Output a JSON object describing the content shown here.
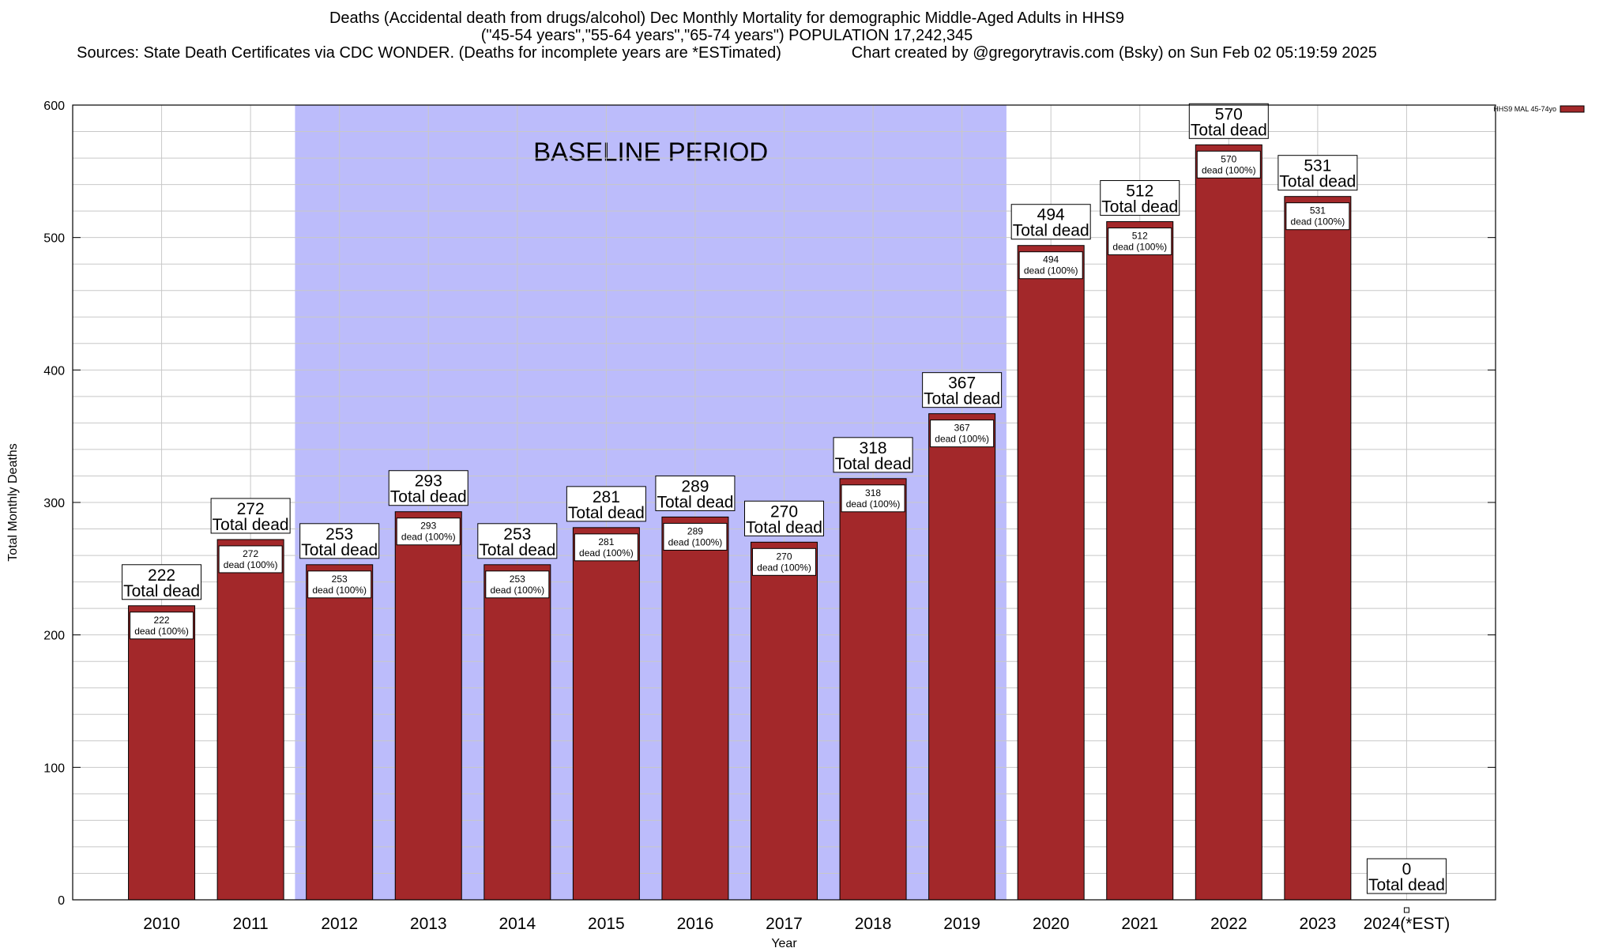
{
  "header": {
    "title_line1": "Deaths (Accidental death from drugs/alcohol) Dec Monthly Mortality for demographic Middle-Aged Adults in HHS9",
    "title_line2": "(\"45-54 years\",\"55-64 years\",\"65-74 years\") POPULATION 17,242,345",
    "title_line3": "Sources: State Death Certificates via CDC WONDER. (Deaths for incomplete years are *ESTimated)                Chart created by @gregorytravis.com (Bsky) on Sun Feb 02 05:19:59 2025"
  },
  "colors": {
    "bar": "#a3282a",
    "baseline_band": "#bcbcfb",
    "grid": "#c8c8c8"
  },
  "chart_data": {
    "type": "bar",
    "categories": [
      "2010",
      "2011",
      "2012",
      "2013",
      "2014",
      "2015",
      "2016",
      "2017",
      "2018",
      "2019",
      "2020",
      "2021",
      "2022",
      "2023",
      "2024(*EST)"
    ],
    "series": [
      {
        "name": "HHS9 MAL 45-74yo",
        "values": [
          222,
          272,
          253,
          293,
          253,
          281,
          289,
          270,
          318,
          367,
          494,
          512,
          570,
          531,
          0
        ]
      }
    ],
    "ylabel": "Total Monthly Deaths",
    "xlabel": "Year",
    "ylim": [
      0,
      600
    ],
    "yticks": [
      0,
      100,
      200,
      300,
      400,
      500,
      600
    ],
    "grid": true,
    "legend_position": "top-right",
    "total_label_text": "Total dead",
    "inner_label_text": "dead (100%)",
    "baseline_period": {
      "label": "BASELINE PERIOD",
      "start": "2012",
      "end": "2019"
    }
  }
}
